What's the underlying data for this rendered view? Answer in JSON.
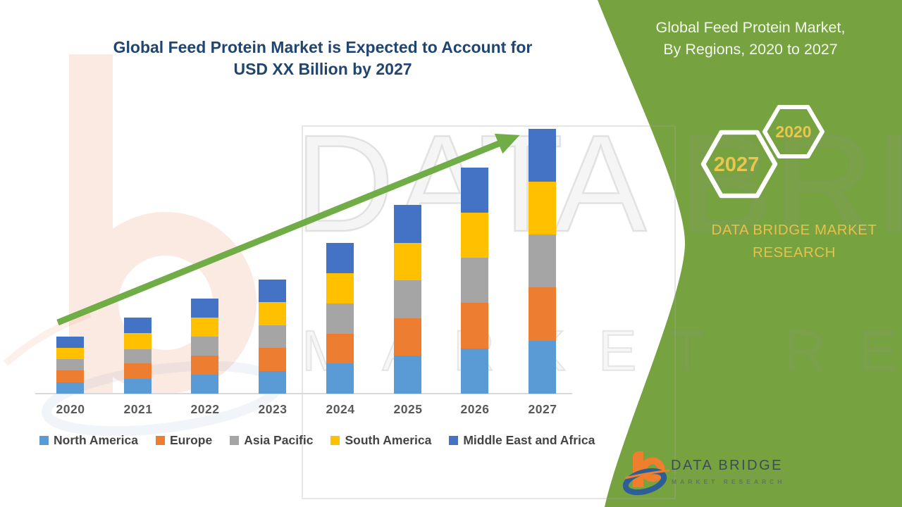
{
  "title": {
    "line1": "Global Feed Protein Market is Expected to Account for",
    "line2": "USD XX Billion by 2027"
  },
  "sidebar": {
    "heading_line1": "Global Feed Protein Market,",
    "heading_line2": "By Regions, 2020 to 2027",
    "hexagons": [
      {
        "label": "2027"
      },
      {
        "label": "2020"
      }
    ],
    "brand_line1": "DATA BRIDGE MARKET",
    "brand_line2": "RESEARCH",
    "logo": {
      "name": "DATA BRIDGE",
      "subtext": "MARKET RESEARCH"
    }
  },
  "watermark": {
    "big_text": "DATA BRIDGE",
    "sub_text": "MARKET RESEARCH",
    "letter": "b"
  },
  "chart_data": {
    "type": "bar",
    "stacked": true,
    "title": "Global Feed Protein Market is Expected to Account for USD XX Billion by 2027",
    "categories": [
      "2020",
      "2021",
      "2022",
      "2023",
      "2024",
      "2025",
      "2026",
      "2027"
    ],
    "series": [
      {
        "name": "North America",
        "color": "#5B9BD5",
        "values": [
          16,
          21,
          27,
          32,
          43,
          54,
          64,
          75
        ]
      },
      {
        "name": "Europe",
        "color": "#ED7D31",
        "values": [
          17,
          22,
          27,
          33,
          42,
          53,
          65,
          76
        ]
      },
      {
        "name": "Asia Pacific",
        "color": "#A5A5A5",
        "values": [
          16,
          20,
          27,
          32,
          43,
          54,
          64,
          75
        ]
      },
      {
        "name": "South America",
        "color": "#FFC000",
        "values": [
          16,
          23,
          27,
          33,
          43,
          53,
          64,
          75
        ]
      },
      {
        "name": "Middle East and Africa",
        "color": "#4472C4",
        "values": [
          16,
          22,
          27,
          32,
          43,
          54,
          64,
          75
        ]
      }
    ],
    "stack_order": "bottom-to-top as listed",
    "value_axis_visible": false,
    "unit_hint": "USD Billion (amounts masked as XX)",
    "legend_position": "bottom",
    "trend_arrow": true,
    "ylim": [
      0,
      400
    ]
  },
  "colors": {
    "panel_green": "#76A23F",
    "arrow_green": "#70AD47",
    "title_navy": "#1F4570",
    "accent_yellow": "#E4C24D",
    "hex_label_yellow": "#E8C64F",
    "axis_gray": "#D9D9D9",
    "xlabel_gray": "#595959",
    "legend_text": "#444444",
    "logo_orange": "#F07F2D",
    "logo_blue": "#2D5E96"
  }
}
